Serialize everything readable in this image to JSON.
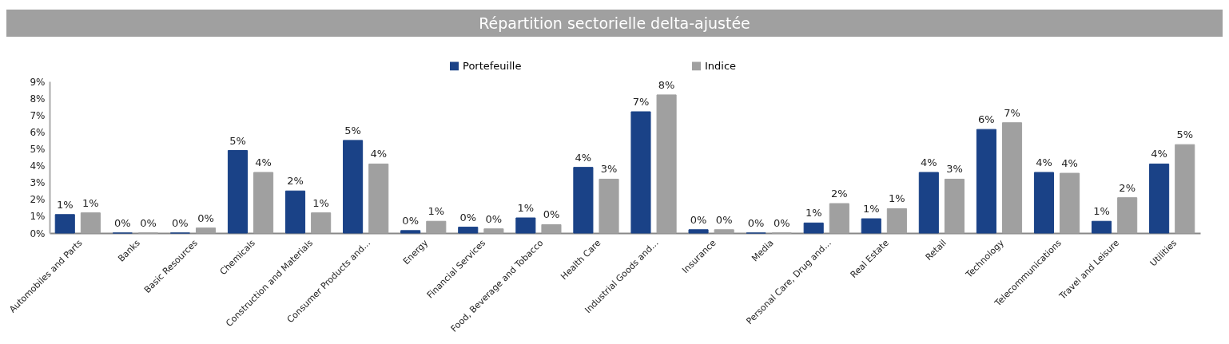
{
  "chart_data": {
    "type": "bar",
    "title": "Répartition sectorielle delta-ajustée",
    "categories": [
      "Automobiles and Parts",
      "Banks",
      "Basic Resources",
      "Chemicals",
      "Construction and Materials",
      "Consumer Products and...",
      "Energy",
      "Financial Services",
      "Food, Beverage and Tobacco",
      "Health Care",
      "Industrial Goods and...",
      "Insurance",
      "Media",
      "Personal Care, Drug and...",
      "Real Estate",
      "Retail",
      "Technology",
      "Telecommunications",
      "Travel and Leisure",
      "Utilities"
    ],
    "series": [
      {
        "name": "Portefeuille",
        "color": "#1a4287",
        "values": [
          1.1,
          0,
          0,
          4.9,
          2.5,
          5.5,
          0.15,
          0.35,
          0.9,
          3.9,
          7.2,
          0.2,
          0,
          0.6,
          0.85,
          3.6,
          6.15,
          3.6,
          0.7,
          4.1
        ],
        "value_labels": [
          "1%",
          "0%",
          "0%",
          "5%",
          "2%",
          "5%",
          "0%",
          "0%",
          "1%",
          "4%",
          "7%",
          "0%",
          "0%",
          "1%",
          "1%",
          "4%",
          "6%",
          "4%",
          "1%",
          "4%"
        ]
      },
      {
        "name": "Indice",
        "color": "#a0a0a0",
        "values": [
          1.2,
          0,
          0.3,
          3.6,
          1.2,
          4.1,
          0.7,
          0.25,
          0.5,
          3.2,
          8.2,
          0.2,
          0,
          1.75,
          1.45,
          3.2,
          6.55,
          3.55,
          2.1,
          5.25
        ],
        "value_labels": [
          "1%",
          "0%",
          "0%",
          "4%",
          "1%",
          "4%",
          "1%",
          "0%",
          "0%",
          "3%",
          "8%",
          "0%",
          "0%",
          "2%",
          "1%",
          "3%",
          "7%",
          "4%",
          "2%",
          "5%"
        ]
      }
    ],
    "ylim": [
      0,
      9
    ],
    "yticks": [
      {
        "value": 0,
        "label": "0%"
      },
      {
        "value": 1,
        "label": "1%"
      },
      {
        "value": 2,
        "label": "2%"
      },
      {
        "value": 3,
        "label": "3%"
      },
      {
        "value": 4,
        "label": "4%"
      },
      {
        "value": 5,
        "label": "5%"
      },
      {
        "value": 6,
        "label": "6%"
      },
      {
        "value": 7,
        "label": "7%"
      },
      {
        "value": 8,
        "label": "8%"
      },
      {
        "value": 9,
        "label": "9%"
      }
    ],
    "grid": false,
    "legend": "top"
  }
}
